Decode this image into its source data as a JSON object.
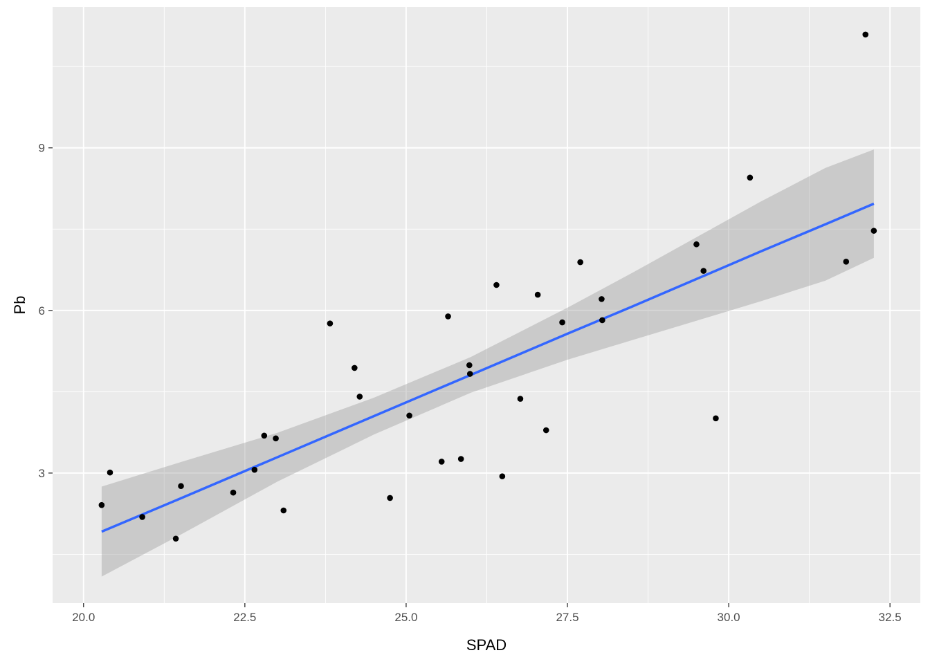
{
  "chart_data": {
    "type": "scatter",
    "title": "",
    "xlabel": "SPAD",
    "ylabel": "Pb",
    "xlim": [
      19.52,
      32.97
    ],
    "ylim": [
      0.6,
      11.6
    ],
    "x_ticks": [
      20.0,
      22.5,
      25.0,
      27.5,
      30.0,
      32.5
    ],
    "x_tick_labels": [
      "20.0",
      "22.5",
      "25.0",
      "27.5",
      "30.0",
      "32.5"
    ],
    "y_ticks": [
      3,
      6,
      9
    ],
    "y_tick_labels": [
      "3",
      "6",
      "9"
    ],
    "grid": true,
    "legend": "none",
    "colors": {
      "panel": "#ebebeb",
      "grid": "#ffffff",
      "points": "#000000",
      "fit_line": "#3366ff",
      "confidence_band": "#999999"
    },
    "points": [
      {
        "x": 20.28,
        "y": 2.41
      },
      {
        "x": 20.41,
        "y": 3.01
      },
      {
        "x": 20.91,
        "y": 2.19
      },
      {
        "x": 21.43,
        "y": 1.79
      },
      {
        "x": 21.51,
        "y": 2.76
      },
      {
        "x": 22.32,
        "y": 2.64
      },
      {
        "x": 22.65,
        "y": 3.06
      },
      {
        "x": 22.8,
        "y": 3.69
      },
      {
        "x": 22.98,
        "y": 3.64
      },
      {
        "x": 23.1,
        "y": 2.31
      },
      {
        "x": 23.82,
        "y": 5.76
      },
      {
        "x": 24.2,
        "y": 4.94
      },
      {
        "x": 24.28,
        "y": 4.41
      },
      {
        "x": 24.75,
        "y": 2.54
      },
      {
        "x": 25.05,
        "y": 4.06
      },
      {
        "x": 25.55,
        "y": 3.21
      },
      {
        "x": 25.65,
        "y": 5.89
      },
      {
        "x": 25.85,
        "y": 3.26
      },
      {
        "x": 25.98,
        "y": 4.99
      },
      {
        "x": 25.99,
        "y": 4.83
      },
      {
        "x": 26.4,
        "y": 6.47
      },
      {
        "x": 26.49,
        "y": 2.94
      },
      {
        "x": 26.77,
        "y": 4.37
      },
      {
        "x": 27.04,
        "y": 6.29
      },
      {
        "x": 27.17,
        "y": 3.79
      },
      {
        "x": 27.42,
        "y": 5.78
      },
      {
        "x": 27.7,
        "y": 6.89
      },
      {
        "x": 28.03,
        "y": 6.21
      },
      {
        "x": 28.04,
        "y": 5.82
      },
      {
        "x": 29.5,
        "y": 7.22
      },
      {
        "x": 29.61,
        "y": 6.73
      },
      {
        "x": 29.8,
        "y": 4.01
      },
      {
        "x": 30.33,
        "y": 8.45
      },
      {
        "x": 31.82,
        "y": 6.9
      },
      {
        "x": 32.12,
        "y": 11.09
      },
      {
        "x": 32.25,
        "y": 7.47
      }
    ],
    "fit": {
      "method": "linear",
      "x": [
        20.28,
        21.5,
        23.0,
        24.5,
        26.0,
        27.5,
        28.5,
        29.5,
        30.5,
        31.5,
        32.25
      ],
      "y": [
        1.92,
        2.53,
        3.29,
        4.05,
        4.81,
        5.57,
        6.07,
        6.58,
        7.09,
        7.59,
        7.97
      ],
      "lower": [
        1.09,
        1.86,
        2.84,
        3.71,
        4.48,
        5.09,
        5.45,
        5.81,
        6.17,
        6.55,
        6.97
      ],
      "upper": [
        2.75,
        3.2,
        3.74,
        4.39,
        5.14,
        6.05,
        6.69,
        7.35,
        8.01,
        8.63,
        8.97
      ]
    }
  }
}
